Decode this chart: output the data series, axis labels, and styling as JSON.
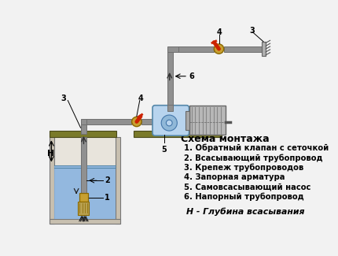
{
  "title": "Схема монтажа",
  "legend_items": [
    "1. Обратный клапан с сеточкой",
    "2. Всасывающий трубопровод",
    "3. Крепеж трубопроводов",
    "4. Запорная арматура",
    "5. Самовсасывающий насос",
    "6. Напорный трубопровод"
  ],
  "footer": "Н - Глубина всасывания",
  "bg_color": "#f2f2f2",
  "water_color": "#8ab4e0",
  "pipe_color": "#909090",
  "ground_color": "#7a7a2a",
  "pump_body_color": "#b8d4ee",
  "motor_color": "#b8b8b8",
  "valve_color": "#cc2200",
  "brass_color": "#c8a030",
  "well_fill": "#c8c0b0",
  "text_color": "#000000",
  "dark_pipe": "#707070"
}
